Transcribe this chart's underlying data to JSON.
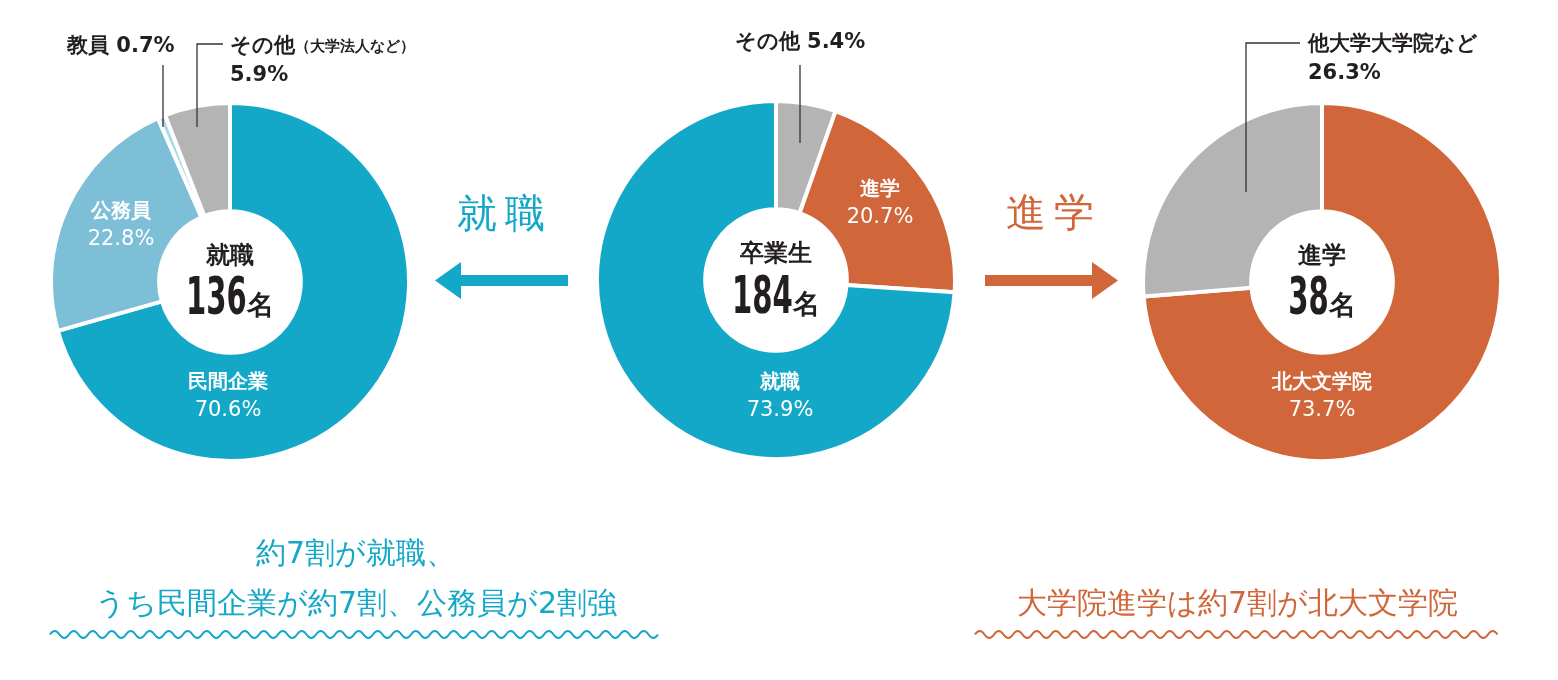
{
  "chart_data": [
    {
      "type": "donut",
      "title": "就職",
      "subtitle": "136名",
      "categories": [
        "民間企業",
        "公務員",
        "教員",
        "その他（大学法人など）"
      ],
      "values": [
        70.6,
        22.8,
        0.7,
        5.9
      ],
      "colors": [
        "#13a7c8",
        "#7dbfd6",
        "#a8dbe8",
        "#b4b4b4"
      ],
      "value_labels": [
        "70.6%",
        "22.8%",
        "0.7%",
        "5.9%"
      ],
      "annotations": [
        "約7割が就職、",
        "うち民間企業が約7割、公務員が2割強"
      ]
    },
    {
      "type": "donut",
      "title": "卒業生",
      "subtitle": "184名",
      "categories": [
        "その他",
        "進学",
        "就職"
      ],
      "values": [
        5.4,
        20.7,
        73.9
      ],
      "colors": [
        "#b4b4b4",
        "#d0663a",
        "#13a7c8"
      ],
      "value_labels": [
        "5.4%",
        "20.7%",
        "73.9%"
      ],
      "annotations": [
        "就職",
        "進学"
      ]
    },
    {
      "type": "donut",
      "title": "進学",
      "subtitle": "38名",
      "categories": [
        "北大文学院",
        "他大学大学院など"
      ],
      "values": [
        73.7,
        26.3
      ],
      "colors": [
        "#d0663a",
        "#b4b4b4"
      ],
      "value_labels": [
        "73.7%",
        "26.3%"
      ],
      "annotations": [
        "大学院進学は約7割が北大文学院"
      ]
    }
  ]
}
